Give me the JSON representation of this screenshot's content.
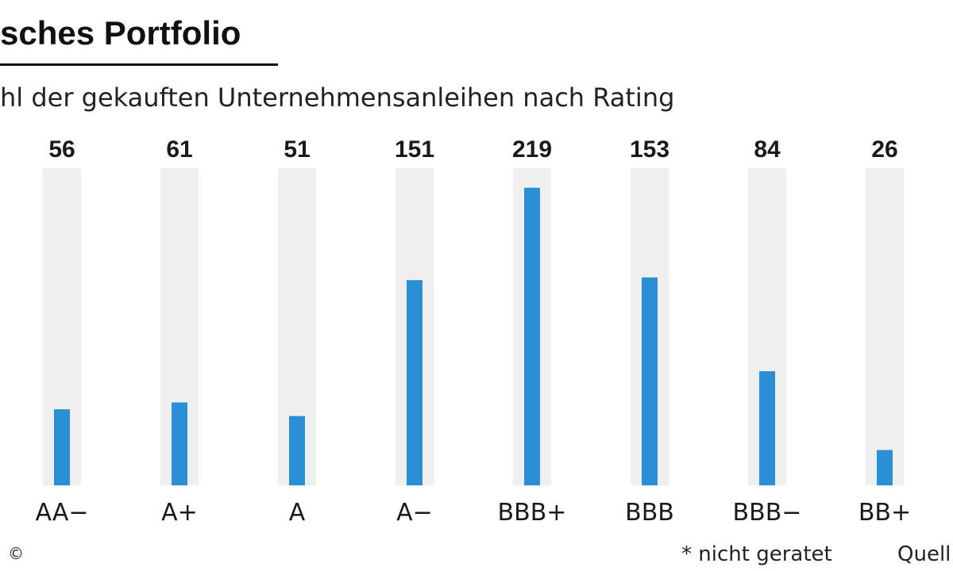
{
  "header": {
    "title": "sches Portfolio",
    "subtitle": "hl der gekauften Unternehmensanleihen nach Rating"
  },
  "footer": {
    "footnote": "* nicht geratet",
    "source": "Quell",
    "copyright_symbol": "©"
  },
  "colors": {
    "bar": "#2b8fd6",
    "track": "#efefef",
    "text": "#1a1a1a"
  },
  "chart_data": {
    "type": "bar",
    "categories": [
      "AA−",
      "A+",
      "A",
      "A−",
      "BBB+",
      "BBB",
      "BBB−",
      "BB+"
    ],
    "values": [
      56,
      61,
      51,
      151,
      219,
      153,
      84,
      26
    ],
    "value_labels": [
      "56",
      "61",
      "51",
      "151",
      "219",
      "153",
      "84",
      "26"
    ],
    "ylim": [
      0,
      220
    ],
    "grid": false,
    "legend": "none"
  }
}
